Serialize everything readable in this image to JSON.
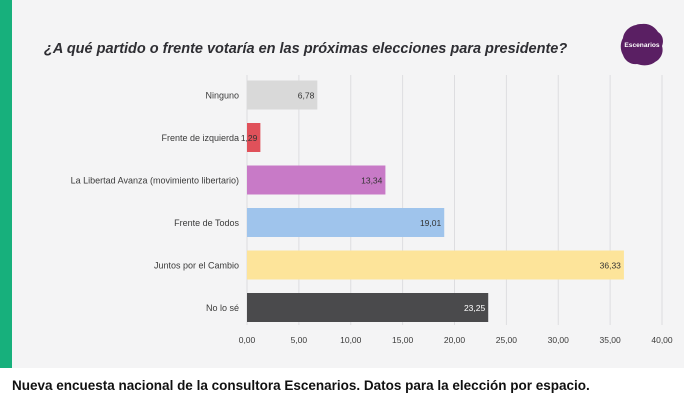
{
  "caption": "Nueva encuesta nacional de la consultora Escenarios. Datos para la elección por espacio.",
  "logo": {
    "text": "Escenarios",
    "icon": "escenarios-logo-badge",
    "color": "#5a1f63"
  },
  "chart_data": {
    "type": "bar",
    "orientation": "horizontal",
    "title": "¿A qué partido o frente votaría en las próximas elecciones para presidente?",
    "categories": [
      "Ninguno",
      "Frente de izquierda",
      "La Libertad Avanza (movimiento libertario)",
      "Frente de Todos",
      "Juntos por el Cambio",
      "No lo sé"
    ],
    "values": [
      6.78,
      1.29,
      13.34,
      19.01,
      36.33,
      23.25
    ],
    "value_labels": [
      "6,78",
      "1,29",
      "13,34",
      "19,01",
      "36,33",
      "23,25"
    ],
    "colors": [
      "#d9d9d9",
      "#e0515a",
      "#c87ac7",
      "#9fc4ec",
      "#fde49a",
      "#4a4a4c"
    ],
    "value_label_colors": [
      "#333333",
      "#333333",
      "#333333",
      "#333333",
      "#333333",
      "#ffffff"
    ],
    "xlim": [
      0,
      40
    ],
    "xticks": [
      0,
      5,
      10,
      15,
      20,
      25,
      30,
      35,
      40
    ],
    "xtick_labels": [
      "0,00",
      "5,00",
      "10,00",
      "15,00",
      "20,00",
      "25,00",
      "30,00",
      "35,00",
      "40,00"
    ],
    "grid": true,
    "xlabel": "",
    "ylabel": ""
  }
}
